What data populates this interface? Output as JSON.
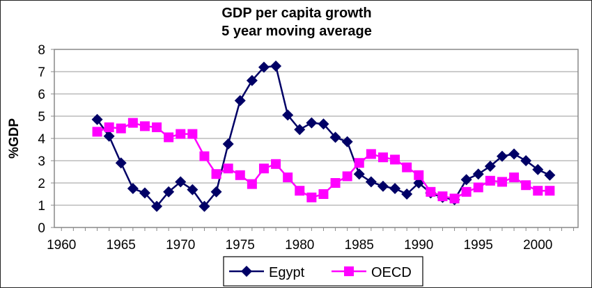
{
  "chart_data": {
    "type": "line",
    "title": "GDP per capita growth",
    "subtitle": "5 year moving average",
    "xlabel": "",
    "ylabel": "%GDP",
    "ylim": [
      0,
      8
    ],
    "yticks": [
      "0",
      "1",
      "2",
      "3",
      "4",
      "5",
      "6",
      "7",
      "8"
    ],
    "xticks": [
      "1960",
      "1965",
      "1970",
      "1975",
      "1980",
      "1985",
      "1990",
      "1995",
      "2000"
    ],
    "grid": true,
    "legend": "bottom",
    "x": [
      1963,
      1964,
      1965,
      1966,
      1967,
      1968,
      1969,
      1970,
      1971,
      1972,
      1973,
      1974,
      1975,
      1976,
      1977,
      1978,
      1979,
      1980,
      1981,
      1982,
      1983,
      1984,
      1985,
      1986,
      1987,
      1988,
      1989,
      1990,
      1991,
      1992,
      1993,
      1994,
      1995,
      1996,
      1997,
      1998,
      1999,
      2000,
      2001
    ],
    "series": [
      {
        "name": "Egypt",
        "color": "#000066",
        "marker": "diamond",
        "values": [
          4.85,
          4.1,
          2.9,
          1.75,
          1.55,
          0.95,
          1.6,
          2.05,
          1.7,
          0.95,
          1.6,
          3.75,
          5.7,
          6.6,
          7.2,
          7.25,
          5.05,
          4.4,
          4.7,
          4.65,
          4.05,
          3.85,
          2.4,
          2.05,
          1.85,
          1.75,
          1.5,
          2.0,
          1.55,
          1.35,
          1.25,
          2.15,
          2.4,
          2.75,
          3.2,
          3.3,
          3.0,
          2.6,
          2.35
        ]
      },
      {
        "name": "OECD",
        "color": "#FF00FF",
        "marker": "square",
        "values": [
          4.3,
          4.5,
          4.45,
          4.7,
          4.55,
          4.5,
          4.05,
          4.2,
          4.2,
          3.2,
          2.4,
          2.65,
          2.35,
          1.95,
          2.65,
          2.85,
          2.25,
          1.65,
          1.35,
          1.5,
          2.0,
          2.3,
          2.9,
          3.3,
          3.15,
          3.05,
          2.7,
          2.35,
          1.6,
          1.4,
          1.3,
          1.6,
          1.8,
          2.1,
          2.05,
          2.25,
          1.9,
          1.65,
          1.65
        ]
      }
    ]
  }
}
